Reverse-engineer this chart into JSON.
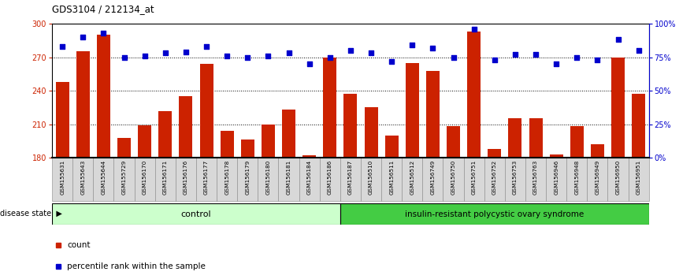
{
  "title": "GDS3104 / 212134_at",
  "samples": [
    "GSM155631",
    "GSM155643",
    "GSM155644",
    "GSM155729",
    "GSM156170",
    "GSM156171",
    "GSM156176",
    "GSM156177",
    "GSM156178",
    "GSM156179",
    "GSM156180",
    "GSM156181",
    "GSM156184",
    "GSM156186",
    "GSM156187",
    "GSM156510",
    "GSM156511",
    "GSM156512",
    "GSM156749",
    "GSM156750",
    "GSM156751",
    "GSM156752",
    "GSM156753",
    "GSM156763",
    "GSM156946",
    "GSM156948",
    "GSM156949",
    "GSM156950",
    "GSM156951"
  ],
  "counts": [
    248,
    275,
    290,
    198,
    209,
    222,
    235,
    264,
    204,
    196,
    210,
    223,
    182,
    270,
    237,
    225,
    200,
    265,
    258,
    208,
    293,
    188,
    215,
    215,
    183,
    208,
    192,
    270,
    237
  ],
  "percentile_ranks": [
    83,
    90,
    93,
    75,
    76,
    78,
    79,
    83,
    76,
    75,
    76,
    78,
    70,
    75,
    80,
    78,
    72,
    84,
    82,
    75,
    96,
    73,
    77,
    77,
    70,
    75,
    73,
    88,
    80
  ],
  "n_control": 14,
  "control_label": "control",
  "disease_label": "insulin-resistant polycystic ovary syndrome",
  "disease_state_label": "disease state",
  "ymin": 180,
  "ymax": 300,
  "yticks_left": [
    180,
    210,
    240,
    270,
    300
  ],
  "yticks_right": [
    0,
    25,
    50,
    75,
    100
  ],
  "bar_color": "#cc2200",
  "scatter_color": "#0000cc",
  "control_bg": "#ccffcc",
  "disease_bg": "#44cc44",
  "bg_color": "#ffffff",
  "bar_width": 0.65,
  "legend_count_label": "count",
  "legend_pct_label": "percentile rank within the sample"
}
